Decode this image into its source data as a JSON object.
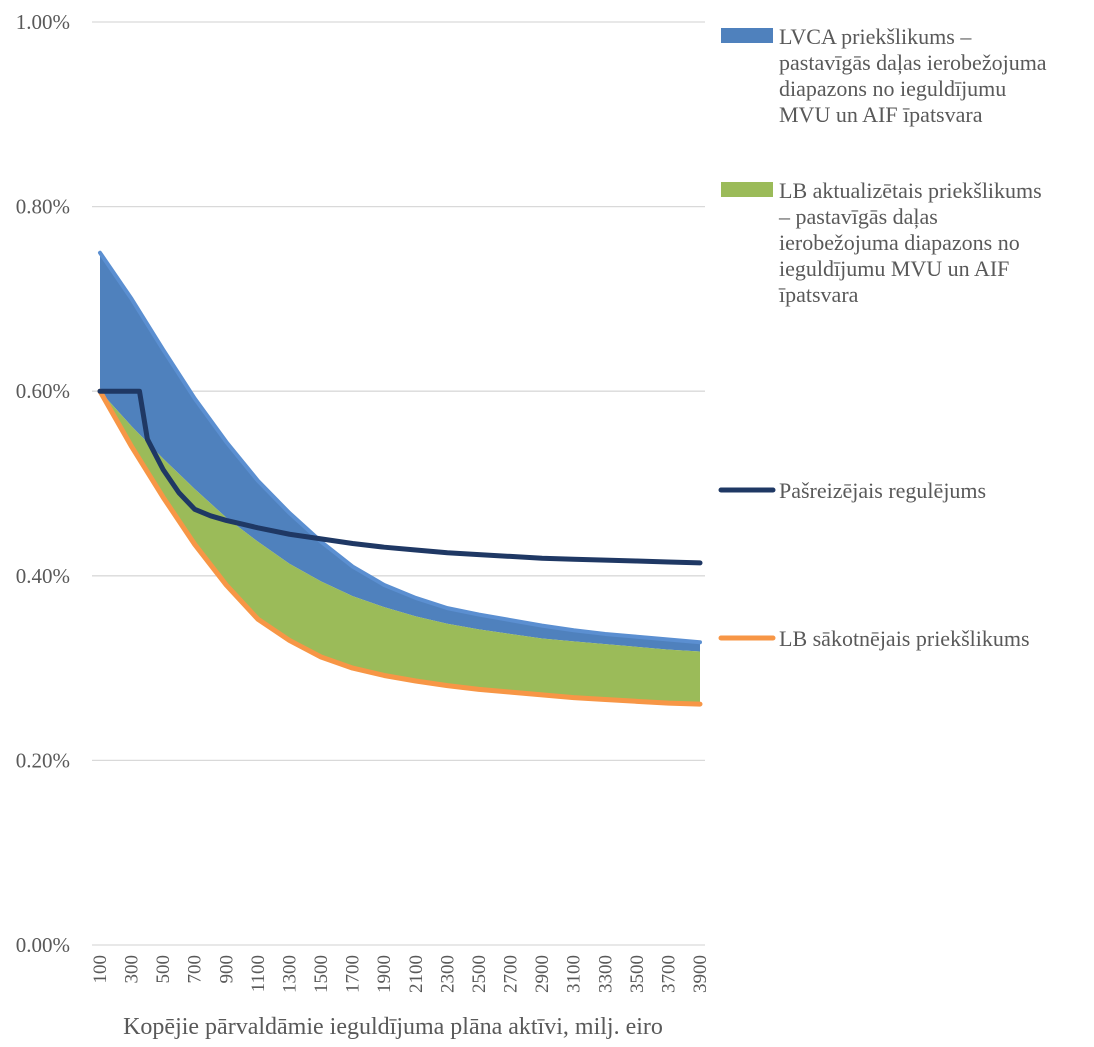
{
  "chart_data": {
    "type": "area",
    "xlabel": "Kopējie pārvaldāmie ieguldījuma plāna aktīvi, milj. eiro",
    "ylabel": "",
    "ylim": [
      0,
      1.0
    ],
    "y_ticks": [
      "0.00%",
      "0.20%",
      "0.40%",
      "0.60%",
      "0.80%",
      "1.00%"
    ],
    "y_tick_values": [
      0,
      0.2,
      0.4,
      0.6,
      0.8,
      1.0
    ],
    "x_ticks": [
      "100",
      "300",
      "500",
      "700",
      "900",
      "1100",
      "1300",
      "1500",
      "1700",
      "1900",
      "2100",
      "2300",
      "2500",
      "2700",
      "2900",
      "3100",
      "3300",
      "3500",
      "3700",
      "3900"
    ],
    "x": [
      100,
      300,
      500,
      700,
      900,
      1100,
      1300,
      1500,
      1700,
      1900,
      2100,
      2300,
      2500,
      2700,
      2900,
      3100,
      3300,
      3500,
      3700,
      3900
    ],
    "grid": "horizontal",
    "legend_position": "right",
    "series": [
      {
        "name": "LVCA priekšlikums – pastavīgās daļas ierobežojuma diapazons no ieguldījumu MVU un AIF īpatsvara",
        "kind": "band",
        "color": "#4f81bd",
        "upper": [
          0.75,
          0.7,
          0.645,
          0.592,
          0.545,
          0.503,
          0.468,
          0.437,
          0.41,
          0.39,
          0.376,
          0.365,
          0.358,
          0.352,
          0.346,
          0.341,
          0.337,
          0.334,
          0.331,
          0.328
        ],
        "lower": [
          0.6,
          0.562,
          0.527,
          0.494,
          0.463,
          0.437,
          0.413,
          0.394,
          0.378,
          0.366,
          0.356,
          0.348,
          0.342,
          0.337,
          0.332,
          0.329,
          0.326,
          0.323,
          0.32,
          0.318
        ],
        "upper_line_color": "#5b8fd1"
      },
      {
        "name": "LB aktualizētais priekšlikums – pastavīgās daļas ierobežojuma diapazons no ieguldījumu MVU un AIF īpatsvara",
        "kind": "band",
        "color": "#9bbb59",
        "upper": [
          0.6,
          0.562,
          0.527,
          0.494,
          0.463,
          0.437,
          0.413,
          0.394,
          0.378,
          0.366,
          0.356,
          0.348,
          0.342,
          0.337,
          0.332,
          0.329,
          0.326,
          0.323,
          0.32,
          0.318
        ],
        "lower": [
          0.6,
          0.54,
          0.485,
          0.434,
          0.39,
          0.353,
          0.33,
          0.312,
          0.3,
          0.292,
          0.286,
          0.281,
          0.277,
          0.274,
          0.271,
          0.268,
          0.266,
          0.264,
          0.262,
          0.261
        ]
      },
      {
        "name": "Pašreizējais regulējums",
        "kind": "line",
        "color": "#1f3864",
        "x": [
          100,
          300,
          350,
          400,
          500,
          600,
          700,
          800,
          900,
          1000,
          1100,
          1300,
          1500,
          1700,
          1900,
          2100,
          2300,
          2500,
          2700,
          2900,
          3100,
          3300,
          3500,
          3700,
          3900
        ],
        "values": [
          0.6,
          0.6,
          0.6,
          0.548,
          0.515,
          0.49,
          0.472,
          0.465,
          0.46,
          0.456,
          0.452,
          0.445,
          0.44,
          0.435,
          0.431,
          0.428,
          0.425,
          0.423,
          0.421,
          0.419,
          0.418,
          0.417,
          0.416,
          0.415,
          0.414
        ]
      },
      {
        "name": "LB sākotnējais priekšlikums",
        "kind": "line",
        "color": "#f79646",
        "values": [
          0.6,
          0.54,
          0.485,
          0.434,
          0.39,
          0.353,
          0.33,
          0.312,
          0.3,
          0.292,
          0.286,
          0.281,
          0.277,
          0.274,
          0.271,
          0.268,
          0.266,
          0.264,
          0.262,
          0.261
        ]
      }
    ]
  }
}
